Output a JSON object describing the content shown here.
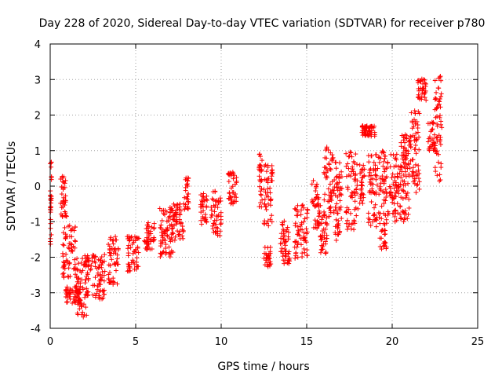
{
  "chart_data": {
    "type": "scatter",
    "title": "Day 228 of 2020, Sidereal Day-to-day VTEC variation (SDTVAR) for receiver p780",
    "xlabel": "GPS time / hours",
    "ylabel": "SDTVAR / TECUs",
    "xlim": [
      0,
      25
    ],
    "ylim": [
      -4,
      4
    ],
    "xticks": [
      "0",
      "5",
      "10",
      "15",
      "20",
      "25"
    ],
    "yticks": [
      "-4",
      "-3",
      "-2",
      "-1",
      "0",
      "1",
      "2",
      "3",
      "4"
    ],
    "grid": true,
    "marker": "+",
    "color": "#ff0000",
    "series": [
      {
        "name": "SDTVAR",
        "clusters": [
          {
            "x0": 0.0,
            "x1": 0.08,
            "ymin": -1.65,
            "ymax": 0.75
          },
          {
            "x0": 0.6,
            "x1": 1.0,
            "ymin": -0.9,
            "ymax": 0.3
          },
          {
            "x0": 0.7,
            "x1": 1.5,
            "ymin": -2.6,
            "ymax": -1.1
          },
          {
            "x0": 0.9,
            "x1": 1.8,
            "ymin": -3.3,
            "ymax": -2.8
          },
          {
            "x0": 1.5,
            "x1": 2.2,
            "ymin": -3.7,
            "ymax": -2.0
          },
          {
            "x0": 2.0,
            "x1": 3.2,
            "ymin": -3.2,
            "ymax": -1.9
          },
          {
            "x0": 3.4,
            "x1": 4.0,
            "ymin": -2.8,
            "ymax": -1.4
          },
          {
            "x0": 4.5,
            "x1": 5.2,
            "ymin": -2.4,
            "ymax": -1.4
          },
          {
            "x0": 5.5,
            "x1": 6.1,
            "ymin": -1.8,
            "ymax": -1.0
          },
          {
            "x0": 6.4,
            "x1": 7.2,
            "ymin": -2.0,
            "ymax": -0.6
          },
          {
            "x0": 7.0,
            "x1": 7.8,
            "ymin": -1.6,
            "ymax": -0.5
          },
          {
            "x0": 7.8,
            "x1": 8.1,
            "ymin": -0.7,
            "ymax": 0.35
          },
          {
            "x0": 8.8,
            "x1": 9.2,
            "ymin": -1.1,
            "ymax": -0.2
          },
          {
            "x0": 9.4,
            "x1": 10.0,
            "ymin": -1.4,
            "ymax": -0.1
          },
          {
            "x0": 10.4,
            "x1": 10.9,
            "ymin": -0.5,
            "ymax": 0.4
          },
          {
            "x0": 12.2,
            "x1": 12.4,
            "ymin": -0.6,
            "ymax": 1.0
          },
          {
            "x0": 12.5,
            "x1": 13.0,
            "ymin": -1.2,
            "ymax": 0.6
          },
          {
            "x0": 12.5,
            "x1": 12.9,
            "ymin": -2.3,
            "ymax": -1.7
          },
          {
            "x0": 13.4,
            "x1": 14.0,
            "ymin": -2.2,
            "ymax": -0.9
          },
          {
            "x0": 14.3,
            "x1": 15.1,
            "ymin": -2.1,
            "ymax": -0.5
          },
          {
            "x0": 15.3,
            "x1": 15.8,
            "ymin": -1.2,
            "ymax": 0.2
          },
          {
            "x0": 15.8,
            "x1": 16.2,
            "ymin": -1.9,
            "ymax": -0.8
          },
          {
            "x0": 16.0,
            "x1": 16.6,
            "ymin": -0.9,
            "ymax": 1.1
          },
          {
            "x0": 16.6,
            "x1": 17.1,
            "ymin": -1.6,
            "ymax": 0.7
          },
          {
            "x0": 17.3,
            "x1": 18.0,
            "ymin": -1.3,
            "ymax": 1.0
          },
          {
            "x0": 18.1,
            "x1": 18.4,
            "ymin": -0.5,
            "ymax": 0.6
          },
          {
            "x0": 18.2,
            "x1": 19.0,
            "ymin": 1.4,
            "ymax": 1.7
          },
          {
            "x0": 18.6,
            "x1": 19.2,
            "ymin": -1.2,
            "ymax": 0.9
          },
          {
            "x0": 19.2,
            "x1": 19.7,
            "ymin": -1.8,
            "ymax": 1.0
          },
          {
            "x0": 19.5,
            "x1": 20.3,
            "ymin": -1.0,
            "ymax": 0.9
          },
          {
            "x0": 20.3,
            "x1": 21.0,
            "ymin": -1.0,
            "ymax": 0.6
          },
          {
            "x0": 20.5,
            "x1": 21.1,
            "ymin": 0.5,
            "ymax": 1.5
          },
          {
            "x0": 21.1,
            "x1": 21.6,
            "ymin": -0.2,
            "ymax": 2.2
          },
          {
            "x0": 21.5,
            "x1": 22.0,
            "ymin": 2.4,
            "ymax": 3.1
          },
          {
            "x0": 22.1,
            "x1": 22.5,
            "ymin": 1.0,
            "ymax": 1.8
          },
          {
            "x0": 22.5,
            "x1": 22.9,
            "ymin": 0.1,
            "ymax": 3.1
          }
        ]
      }
    ]
  }
}
